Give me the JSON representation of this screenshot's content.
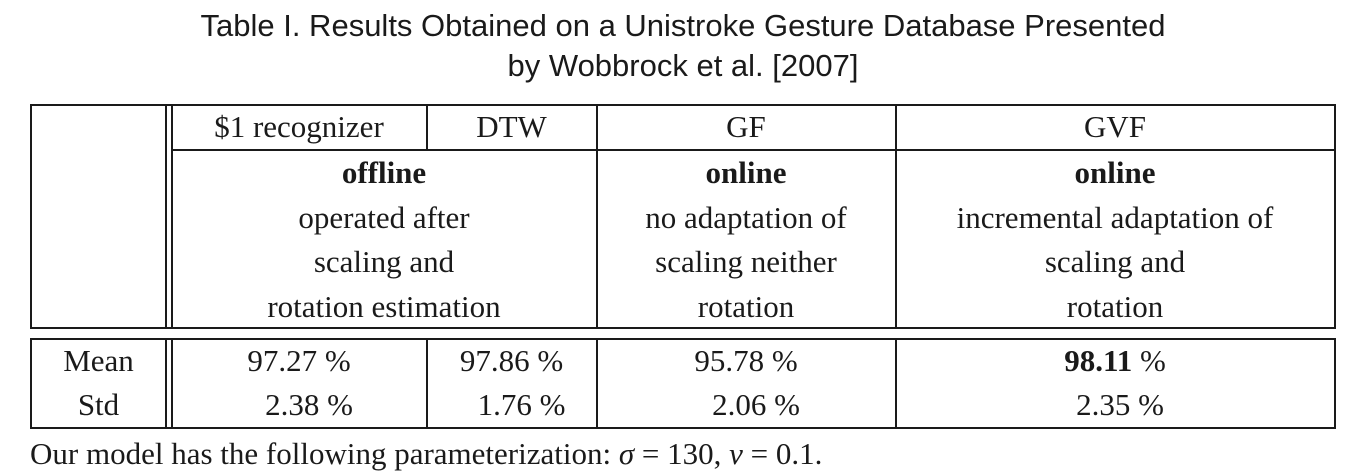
{
  "caption": {
    "line1": "Table I. Results Obtained on a Unistroke Gesture Database Presented",
    "line2": "by Wobbrock et al. [2007]"
  },
  "header": {
    "methods": [
      "$1 recognizer",
      "DTW",
      "GF",
      "GVF"
    ],
    "groups": [
      {
        "mode": "offline",
        "desc": [
          "operated after",
          "scaling and",
          "rotation estimation"
        ]
      },
      {
        "mode": "online",
        "desc": [
          "no adaptation of",
          "scaling neither",
          "rotation"
        ]
      },
      {
        "mode": "online",
        "desc": [
          "incremental adaptation of",
          "scaling and",
          "rotation"
        ]
      }
    ]
  },
  "rows": [
    {
      "label": "Mean",
      "values": [
        "97.27 %",
        "97.86 %",
        "95.78 %"
      ],
      "best_num": "98.11",
      "best_unit": " %"
    },
    {
      "label": "Std",
      "values": [
        "2.38 %",
        "1.76 %",
        "2.06 %",
        "2.35 %"
      ]
    }
  ],
  "note": {
    "prefix": "Our model has the following parameterization: ",
    "sigma_sym": "σ",
    "sigma_val": " = 130, ",
    "nu_sym": "ν",
    "nu_val": " = 0.1."
  }
}
